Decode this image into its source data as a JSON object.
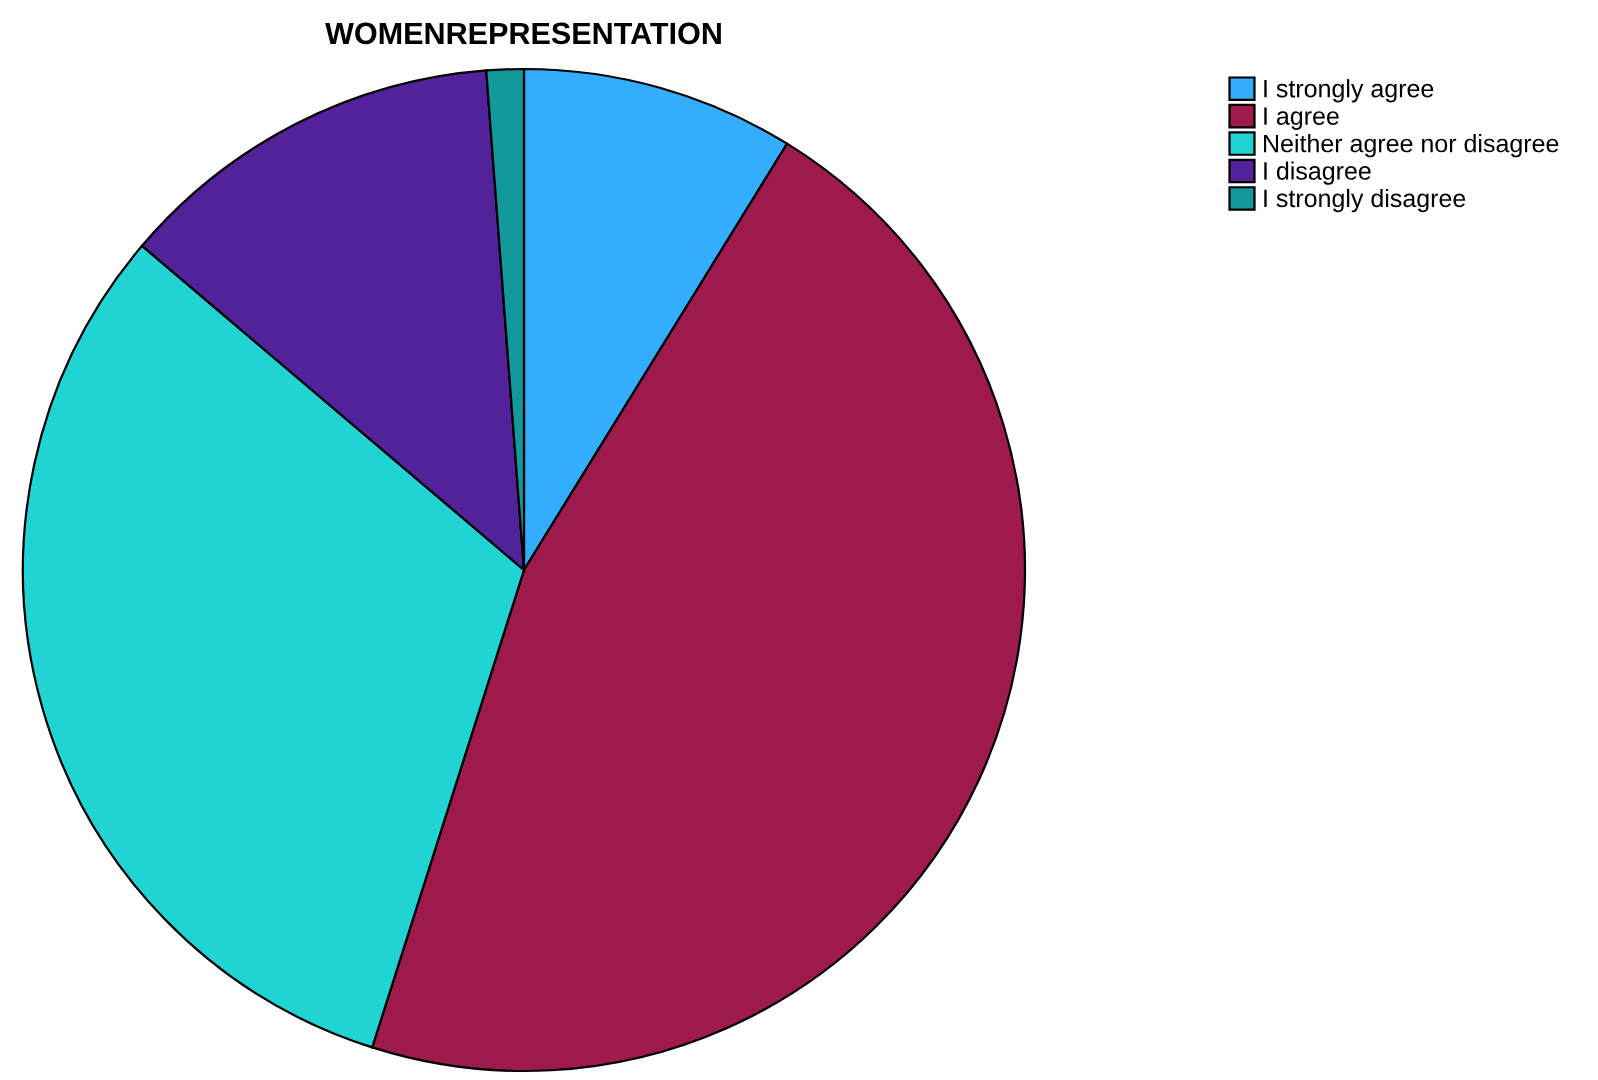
{
  "chart_data": {
    "type": "pie",
    "title": "WOMENREPRESENTATION",
    "categories": [
      "I strongly agree",
      "I agree",
      "Neither agree nor disagree",
      "I disagree",
      "I strongly disagree"
    ],
    "values": [
      8.8,
      46.1,
      31.3,
      12.6,
      1.2
    ],
    "colors": [
      "#33adff",
      "#9e1a4c",
      "#21d4d4",
      "#52229a",
      "#12999c"
    ],
    "legend": "top right"
  }
}
